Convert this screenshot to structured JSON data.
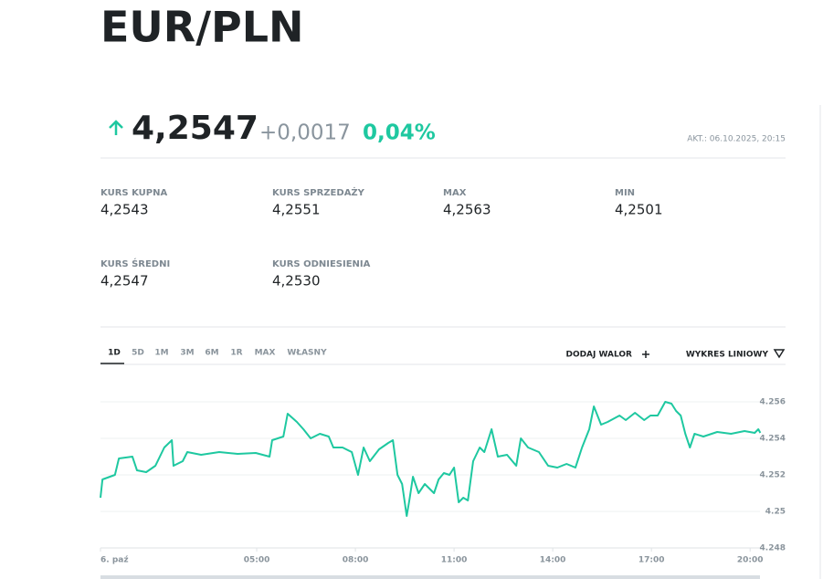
{
  "header": {
    "title": "EUR/PLN"
  },
  "quote": {
    "price": "4,2547",
    "change": "+0,0017",
    "change_pct": "0,04%",
    "updated": "AKT.: 06.10.2025, 20:15"
  },
  "stats": [
    {
      "label": "KURS KUPNA",
      "value": "4,2543"
    },
    {
      "label": "KURS SPRZEDAŻY",
      "value": "4,2551"
    },
    {
      "label": "MAX",
      "value": "4,2563"
    },
    {
      "label": "MIN",
      "value": "4,2501"
    },
    {
      "label": "KURS ŚREDNI",
      "value": "4,2547"
    },
    {
      "label": "KURS ODNIESIENIA",
      "value": "4,2530"
    }
  ],
  "tabs": [
    "1D",
    "5D",
    "1M",
    "3M",
    "6M",
    "1R",
    "MAX",
    "WŁASNY"
  ],
  "active_tab": "1D",
  "actions": {
    "add": "DODAJ WALOR",
    "chart_type": "WYKRES LINIOWY"
  },
  "chart_data": {
    "type": "line",
    "color": "#1ec8a0",
    "x": [
      0.25,
      0.31,
      0.69,
      0.81,
      1.22,
      1.36,
      1.64,
      1.92,
      2.19,
      2.42,
      2.47,
      2.75,
      2.89,
      3.31,
      3.86,
      4.42,
      4.97,
      5.39,
      5.47,
      5.81,
      5.94,
      6.22,
      6.42,
      6.64,
      6.92,
      7.19,
      7.33,
      7.61,
      7.89,
      8.08,
      8.25,
      8.44,
      8.72,
      9.0,
      9.14,
      9.28,
      9.42,
      9.56,
      9.64,
      9.75,
      9.92,
      10.11,
      10.39,
      10.53,
      10.69,
      10.86,
      11.0,
      11.14,
      11.28,
      11.42,
      11.58,
      11.78,
      11.92,
      12.14,
      12.33,
      12.61,
      12.89,
      13.03,
      13.25,
      13.58,
      13.86,
      14.14,
      14.42,
      14.69,
      14.89,
      15.11,
      15.25,
      15.47,
      15.67,
      16.03,
      16.22,
      16.5,
      16.78,
      16.97,
      17.19,
      17.42,
      17.61,
      17.75,
      17.89,
      18.03,
      18.17,
      18.31,
      18.58,
      19.0,
      19.42,
      19.83,
      20.14,
      20.25,
      20.31
    ],
    "values": [
      4.25075,
      4.25175,
      4.252,
      4.2529,
      4.253,
      4.25225,
      4.25215,
      4.2525,
      4.2535,
      4.2539,
      4.2525,
      4.25275,
      4.25325,
      4.2531,
      4.25325,
      4.25315,
      4.2532,
      4.253,
      4.2539,
      4.2541,
      4.25535,
      4.2549,
      4.2545,
      4.254,
      4.25425,
      4.2541,
      4.2535,
      4.2535,
      4.25325,
      4.252,
      4.2535,
      4.25275,
      4.2534,
      4.25375,
      4.2539,
      4.252,
      4.2515,
      4.24975,
      4.2506,
      4.2519,
      4.251,
      4.2515,
      4.251,
      4.25175,
      4.2521,
      4.252,
      4.2524,
      4.2505,
      4.25075,
      4.2506,
      4.25275,
      4.2535,
      4.25325,
      4.2545,
      4.253,
      4.2531,
      4.2525,
      4.254,
      4.2535,
      4.25325,
      4.2525,
      4.2524,
      4.2526,
      4.2524,
      4.2535,
      4.2545,
      4.25575,
      4.25475,
      4.2549,
      4.25525,
      4.255,
      4.2554,
      4.255,
      4.25525,
      4.25525,
      4.256,
      4.2559,
      4.2555,
      4.25525,
      4.25425,
      4.2535,
      4.25425,
      4.2541,
      4.25435,
      4.25425,
      4.2544,
      4.2543,
      4.2545,
      4.2543
    ],
    "xlim": [
      0.25,
      20.3
    ],
    "ylim": [
      4.248,
      4.257
    ],
    "xticks": [
      {
        "value": 0,
        "label": "6. paź"
      },
      {
        "value": 5,
        "label": "05:00"
      },
      {
        "value": 8,
        "label": "08:00"
      },
      {
        "value": 11,
        "label": "11:00"
      },
      {
        "value": 14,
        "label": "14:00"
      },
      {
        "value": 17,
        "label": "17:00"
      },
      {
        "value": 20,
        "label": "20:00"
      }
    ],
    "yticks": [
      4.248,
      4.25,
      4.252,
      4.254,
      4.256
    ],
    "grid": true
  }
}
